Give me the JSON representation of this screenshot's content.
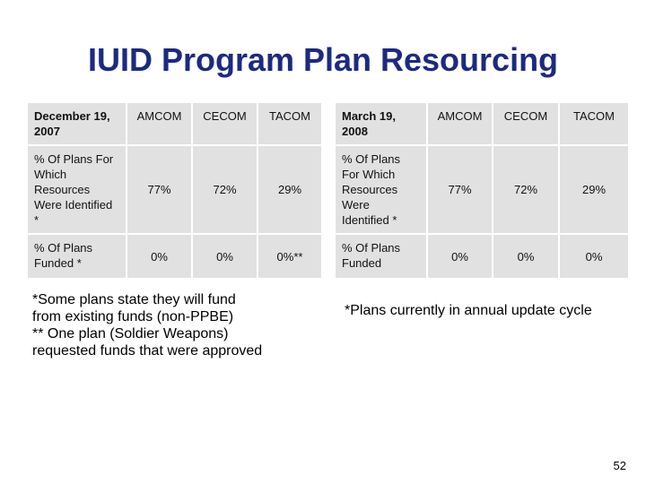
{
  "title": "IUID Program Plan Resourcing",
  "tables": [
    {
      "header": [
        "December 19, 2007",
        "AMCOM",
        "CECOM",
        "TACOM"
      ],
      "rows": [
        [
          "% Of Plans For Which Resources Were Identified *",
          "77%",
          "72%",
          "29%"
        ],
        [
          "% Of Plans Funded *",
          "0%",
          "0%",
          "0%**"
        ]
      ]
    },
    {
      "header": [
        "March 19, 2008",
        "AMCOM",
        "CECOM",
        "TACOM"
      ],
      "rows": [
        [
          "% Of Plans For Which Resources Were Identified *",
          "77%",
          "72%",
          "29%"
        ],
        [
          "% Of Plans Funded",
          "0%",
          "0%",
          "0%"
        ]
      ]
    }
  ],
  "notes": [
    [
      "*Some plans state they will fund",
      "from existing funds (non-PPBE)",
      "** One plan (Soldier Weapons)",
      "requested funds that were approved"
    ],
    [
      "*Plans currently in annual update cycle"
    ]
  ],
  "page_number": "52"
}
